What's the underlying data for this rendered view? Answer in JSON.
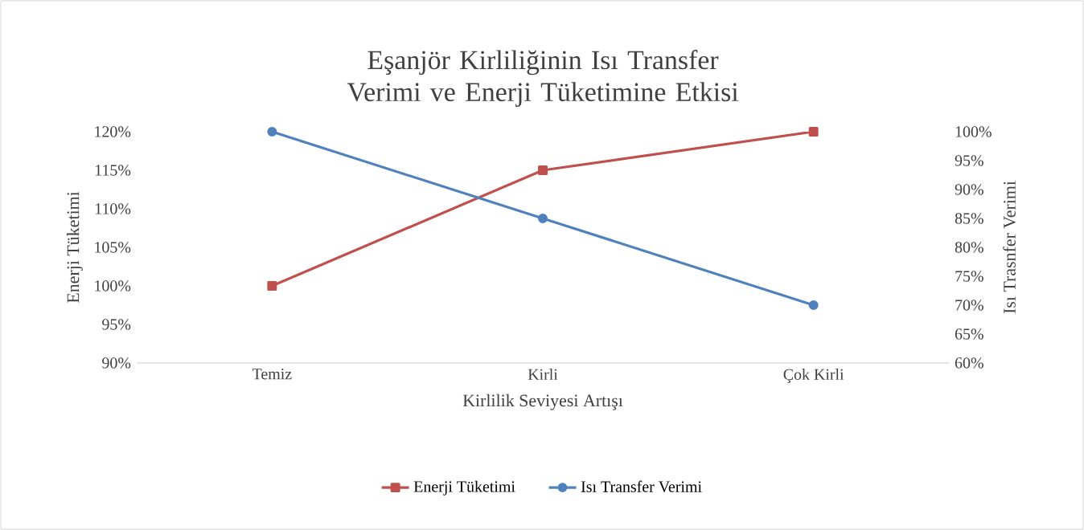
{
  "chart_data": {
    "type": "line",
    "title": "Eşanjör Kirliliğinin Isı Transfer Verimi ve Enerji Tüketimine Etkisi",
    "xlabel": "Kirlilik Seviyesi Artışı",
    "ylabel": "Enerji Tüketimi",
    "y2label": "Isı Trasnfer Verimi",
    "categories": [
      "Temiz",
      "Kirli",
      "Çok Kirli"
    ],
    "series": [
      {
        "name": "Enerji Tüketimi",
        "color": "#c0504d",
        "marker": "square",
        "values": [
          100,
          115,
          120
        ]
      },
      {
        "name": "Isı Transfer Verimi",
        "color": "#4f81bd",
        "marker": "circle",
        "axis": "y2",
        "values": [
          100,
          85,
          70
        ]
      }
    ],
    "ylim": [
      90,
      120
    ],
    "yticks": [
      {
        "value": 90,
        "label": "90%"
      },
      {
        "value": 95,
        "label": "95%"
      },
      {
        "value": 100,
        "label": "100%"
      },
      {
        "value": 105,
        "label": "105%"
      },
      {
        "value": 110,
        "label": "110%"
      },
      {
        "value": 115,
        "label": "115%"
      },
      {
        "value": 120,
        "label": "120%"
      }
    ],
    "y2lim": [
      60,
      100
    ],
    "y2ticks": [
      {
        "value": 60,
        "label": "60%"
      },
      {
        "value": 65,
        "label": "65%"
      },
      {
        "value": 70,
        "label": "70%"
      },
      {
        "value": 75,
        "label": "75%"
      },
      {
        "value": 80,
        "label": "80%"
      },
      {
        "value": 85,
        "label": "85%"
      },
      {
        "value": 90,
        "label": "90%"
      },
      {
        "value": 95,
        "label": "95%"
      },
      {
        "value": 100,
        "label": "100%"
      }
    ],
    "legend": "bottom",
    "line_style": "solid",
    "grid": false
  }
}
